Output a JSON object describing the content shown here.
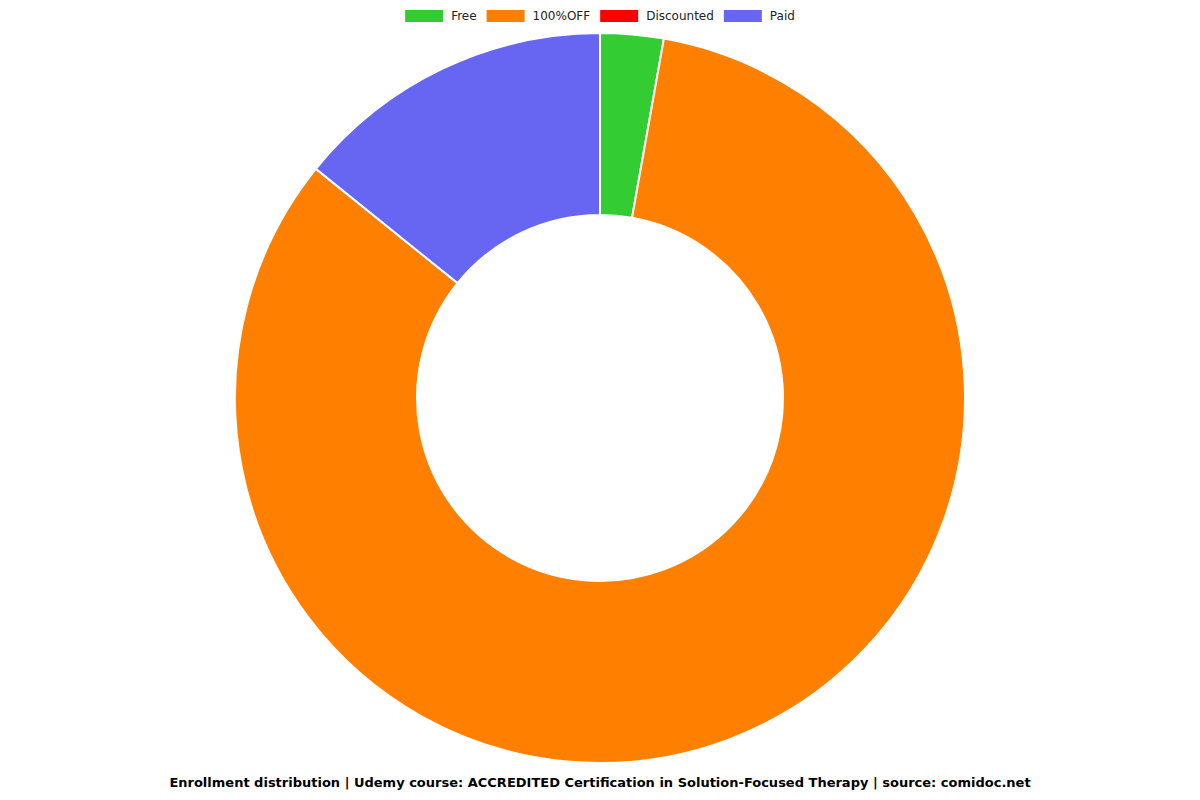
{
  "chart_data": {
    "type": "pie",
    "title": "Enrollment distribution | Udemy course: ACCREDITED Certification in Solution-Focused Therapy | source: comidoc.net",
    "categories": [
      "Free",
      "100%OFF",
      "Discounted",
      "Paid"
    ],
    "values": [
      2.8,
      83,
      0,
      14.2
    ],
    "colors": [
      "#33cc33",
      "#ff8000",
      "#ff0000",
      "#6666f2"
    ],
    "legend": "top"
  }
}
